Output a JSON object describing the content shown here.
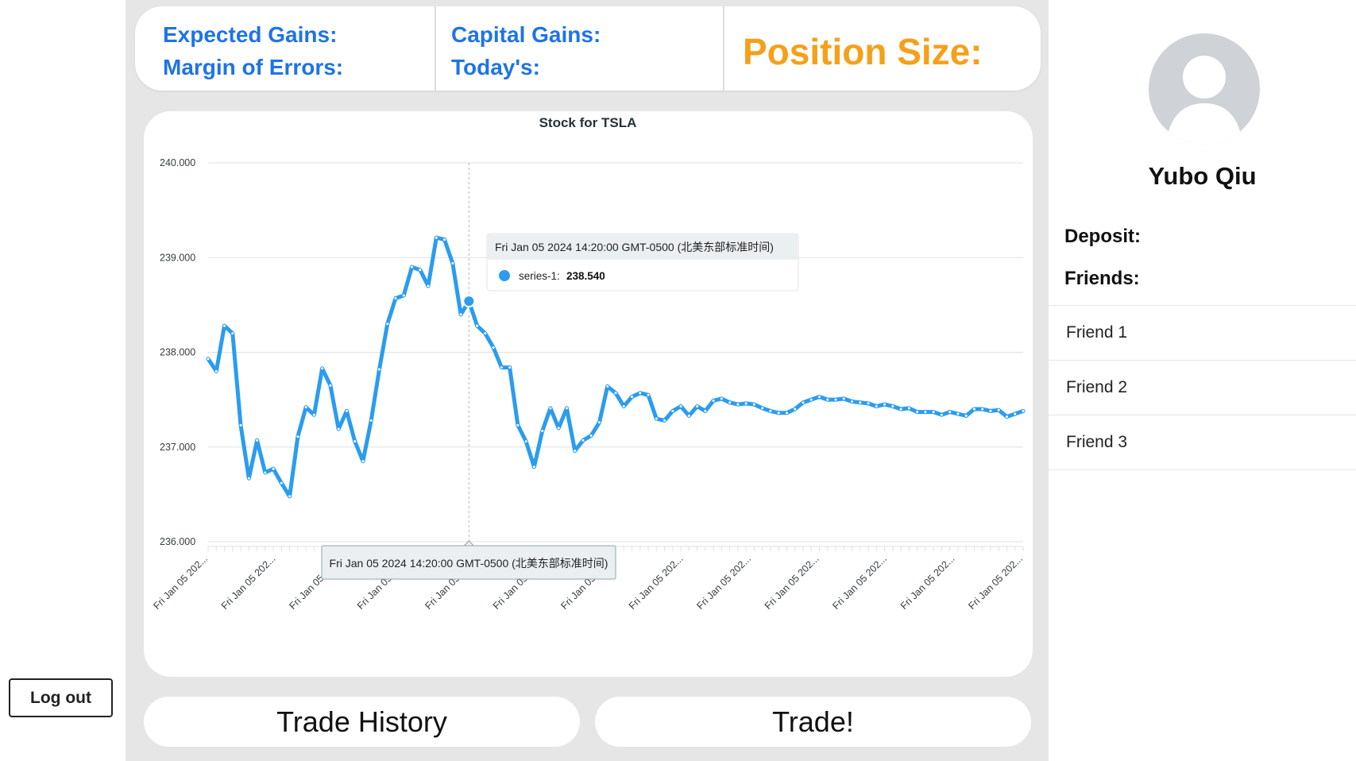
{
  "sidebar": {
    "logout_label": "Log out"
  },
  "stats": {
    "expected_gains_label": "Expected Gains:",
    "margin_of_errors_label": "Margin of Errors:",
    "capital_gains_label": "Capital Gains:",
    "todays_label": "Today's:",
    "position_size_label": "Position Size:"
  },
  "colors": {
    "stat_blue": "#1e73e8",
    "position_orange": "#f5a01a",
    "series_blue": "#2b9cef"
  },
  "chart_data": {
    "type": "line",
    "title": "Stock for TSLA",
    "xlabel": "",
    "ylabel": "",
    "ylim": [
      236,
      240
    ],
    "y_ticks": [
      "236.000",
      "237.000",
      "238.000",
      "239.000",
      "240.000"
    ],
    "x_tick_labels": [
      "Fri Jan 05 202...",
      "Fri Jan 05 202...",
      "Fri Jan 05 202...",
      "Fri Jan 05 202...",
      "Fri Jan 05 202...",
      "Fri Jan 05 202...",
      "Fri Jan 05 202...",
      "Fri Jan 05 202...",
      "Fri Jan 05 202...",
      "Fri Jan 05 202...",
      "Fri Jan 05 202...",
      "Fri Jan 05 202...",
      "Fri Jan 05 202..."
    ],
    "grid": true,
    "legend": "none",
    "series": [
      {
        "name": "series-1",
        "values": [
          237.93,
          237.8,
          238.28,
          238.2,
          237.23,
          236.67,
          237.07,
          236.73,
          236.77,
          236.62,
          236.48,
          237.11,
          237.42,
          237.34,
          237.83,
          237.65,
          237.19,
          237.38,
          237.06,
          236.85,
          237.28,
          237.82,
          238.3,
          238.57,
          238.6,
          238.9,
          238.87,
          238.7,
          239.21,
          239.19,
          238.94,
          238.4,
          238.54,
          238.28,
          238.2,
          238.05,
          237.84,
          237.84,
          237.23,
          237.06,
          236.79,
          237.17,
          237.41,
          237.2,
          237.41,
          236.96,
          237.07,
          237.12,
          237.26,
          237.64,
          237.57,
          237.43,
          237.53,
          237.57,
          237.55,
          237.3,
          237.28,
          237.38,
          237.43,
          237.33,
          237.43,
          237.38,
          237.49,
          237.51,
          237.47,
          237.45,
          237.46,
          237.45,
          237.41,
          237.38,
          237.36,
          237.36,
          237.4,
          237.47,
          237.5,
          237.53,
          237.5,
          237.5,
          237.51,
          237.48,
          237.47,
          237.46,
          237.43,
          237.45,
          237.43,
          237.4,
          237.41,
          237.37,
          237.37,
          237.37,
          237.34,
          237.37,
          237.35,
          237.33,
          237.4,
          237.4,
          237.38,
          237.39,
          237.32,
          237.35,
          237.38
        ]
      }
    ],
    "tooltip": {
      "title": "Fri Jan 05 2024 14:20:00 GMT-0500 (北美东部标准时间)",
      "series_label": "series-1:",
      "value_label": "238.540",
      "point_index": 32
    },
    "xaxis_tooltip": "Fri Jan 05 2024 14:20:00 GMT-0500 (北美东部标准时间)"
  },
  "actions": {
    "trade_history_label": "Trade History",
    "trade_label": "Trade!"
  },
  "profile": {
    "name": "Yubo Qiu",
    "deposit_label": "Deposit:",
    "friends_label": "Friends:",
    "friends": [
      {
        "name": "Friend 1"
      },
      {
        "name": "Friend 2"
      },
      {
        "name": "Friend 3"
      }
    ]
  }
}
